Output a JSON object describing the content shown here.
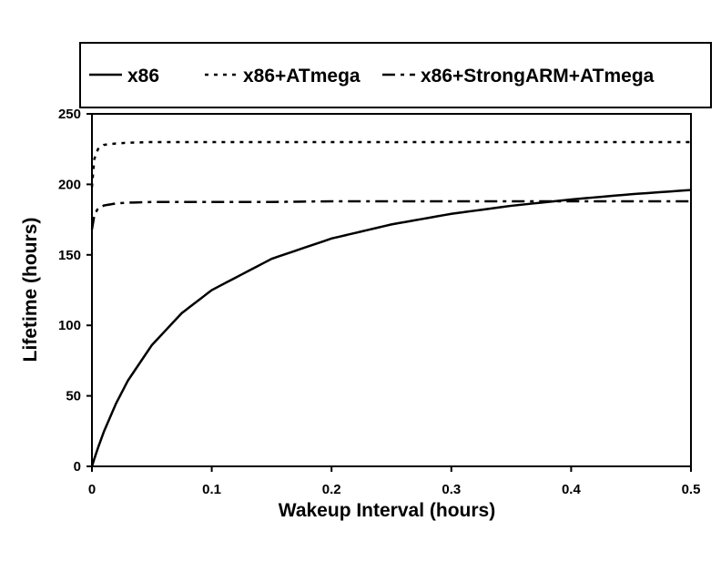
{
  "chart_data": {
    "type": "line",
    "title": "",
    "xlabel": "Wakeup Interval (hours)",
    "ylabel": "Lifetime (hours)",
    "xlim": [
      0,
      0.5
    ],
    "ylim": [
      0,
      250
    ],
    "xticks": [
      "0",
      "0.1",
      "0.2",
      "0.3",
      "0.4",
      "0.5"
    ],
    "yticks": [
      "0",
      "50",
      "100",
      "150",
      "200",
      "250"
    ],
    "grid": false,
    "legend_position": "top",
    "x": [
      0,
      0.002,
      0.005,
      0.01,
      0.02,
      0.03,
      0.05,
      0.075,
      0.1,
      0.15,
      0.2,
      0.25,
      0.3,
      0.35,
      0.4,
      0.45,
      0.5
    ],
    "series": [
      {
        "name": "x86",
        "style": "solid",
        "values": [
          0,
          5.4,
          13.0,
          24.7,
          44.4,
          60.8,
          86.0,
          108.7,
          125,
          147.2,
          161.6,
          171.6,
          179.1,
          184.8,
          189.3,
          193.0,
          196
        ]
      },
      {
        "name": "x86+ATmega",
        "style": "dotted",
        "values": [
          198,
          218,
          225,
          228,
          229,
          229.5,
          230,
          230,
          230,
          230,
          230,
          230,
          230,
          230,
          230,
          230,
          230
        ]
      },
      {
        "name": "x86+StrongARM+ATmega",
        "style": "dashdot",
        "values": [
          168,
          178,
          183,
          185,
          186.5,
          187,
          187.5,
          187.5,
          187.5,
          187.5,
          188,
          188,
          188,
          188,
          188,
          188,
          188
        ]
      }
    ]
  }
}
